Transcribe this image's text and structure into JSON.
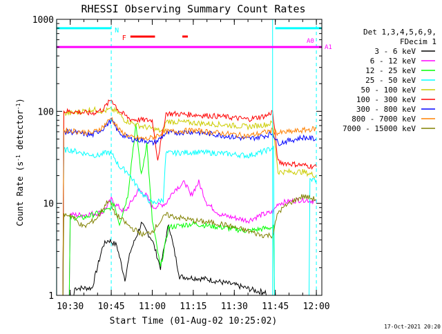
{
  "chart_data": {
    "type": "line",
    "title": "RHESSI Observing Summary Count Rates",
    "xlabel": "Start Time (01-Aug-02 10:25:02)",
    "ylabel": "Count Rate (s^-1 detector^-1)",
    "y_scale": "log",
    "ylim": [
      1,
      1000
    ],
    "xlim": [
      "10:25:02",
      "12:02:00"
    ],
    "x_ticks": [
      "10:30",
      "10:45",
      "11:00",
      "11:15",
      "11:30",
      "11:45",
      "12:00"
    ],
    "y_ticks": [
      "1",
      "10",
      "100",
      "1000"
    ],
    "legend_header": [
      "Det 1,3,4,5,6,9,",
      "FDecim 1"
    ],
    "legend_placement": "right",
    "timestamp": "17-Oct-2021 20:20",
    "annotations": {
      "night_label": "N",
      "flare_label": "F",
      "attenuator_label": "A0",
      "attenuator_label_right": "A1"
    },
    "series": [
      {
        "name": "3 - 6 keV",
        "color": "#000000",
        "points": [
          [
            "10:25",
            0
          ],
          [
            "10:38",
            1.2
          ],
          [
            "10:42",
            3.5
          ],
          [
            "10:44",
            4.0
          ],
          [
            "10:47",
            3.5
          ],
          [
            "10:50",
            1.5
          ],
          [
            "10:52",
            3.0
          ],
          [
            "10:56",
            6.0
          ],
          [
            "11:00",
            4.0
          ],
          [
            "11:03",
            2.0
          ],
          [
            "11:06",
            6.0
          ],
          [
            "11:10",
            1.6
          ],
          [
            "11:20",
            1.5
          ],
          [
            "11:30",
            1.3
          ],
          [
            "11:39",
            1.1
          ],
          [
            "11:44",
            0
          ]
        ]
      },
      {
        "name": "6 - 12 keV",
        "color": "#ff00ff",
        "points": [
          [
            "10:25",
            0
          ],
          [
            "10:35",
            7.5
          ],
          [
            "10:42",
            8.0
          ],
          [
            "10:45",
            11
          ],
          [
            "10:47",
            9.5
          ],
          [
            "10:50",
            8.0
          ],
          [
            "10:55",
            14
          ],
          [
            "10:58",
            12
          ],
          [
            "11:00",
            9
          ],
          [
            "11:05",
            10
          ],
          [
            "11:08",
            14
          ],
          [
            "11:12",
            17
          ],
          [
            "11:14",
            12
          ],
          [
            "11:17",
            17
          ],
          [
            "11:20",
            10
          ],
          [
            "11:25",
            7.5
          ],
          [
            "11:35",
            6.5
          ],
          [
            "11:40",
            7.5
          ],
          [
            "11:44",
            8.0
          ],
          [
            "11:46",
            10
          ],
          [
            "11:50",
            10.5
          ],
          [
            "11:55",
            11
          ],
          [
            "12:00",
            10.5
          ]
        ]
      },
      {
        "name": "12 - 25 keV",
        "color": "#00ff00",
        "points": [
          [
            "10:25",
            0
          ],
          [
            "10:35",
            7.0
          ],
          [
            "10:44",
            8.5
          ],
          [
            "10:46",
            10
          ],
          [
            "10:48",
            6.0
          ],
          [
            "10:51",
            12
          ],
          [
            "10:53",
            40
          ],
          [
            "10:54",
            70
          ],
          [
            "10:56",
            20
          ],
          [
            "10:58",
            45
          ],
          [
            "11:00",
            6.5
          ],
          [
            "11:03",
            2.0
          ],
          [
            "11:06",
            5.5
          ],
          [
            "11:15",
            6.0
          ],
          [
            "11:25",
            5.5
          ],
          [
            "11:35",
            5.0
          ],
          [
            "11:44",
            5.5
          ],
          [
            "11:45",
            0
          ]
        ]
      },
      {
        "name": "25 - 50 keV",
        "color": "#00ffff",
        "points": [
          [
            "10:25",
            0
          ],
          [
            "10:30",
            38
          ],
          [
            "10:35",
            35
          ],
          [
            "10:40",
            33
          ],
          [
            "10:44",
            36
          ],
          [
            "10:46",
            32
          ],
          [
            "10:48",
            25
          ],
          [
            "10:51",
            22
          ],
          [
            "10:54",
            16
          ],
          [
            "10:57",
            12
          ],
          [
            "11:00",
            10
          ],
          [
            "11:04",
            11
          ],
          [
            "11:05",
            35
          ],
          [
            "11:15",
            36
          ],
          [
            "11:25",
            35
          ],
          [
            "11:35",
            33
          ],
          [
            "11:40",
            36
          ],
          [
            "11:44",
            40
          ],
          [
            "11:45",
            0
          ],
          [
            "11:55",
            0
          ],
          [
            "12:00",
            18
          ]
        ]
      },
      {
        "name": "50 - 100 keV",
        "color": "#cccc00",
        "points": [
          [
            "10:25",
            0
          ],
          [
            "10:30",
            95
          ],
          [
            "10:38",
            105
          ],
          [
            "10:42",
            100
          ],
          [
            "10:45",
            105
          ],
          [
            "10:47",
            100
          ],
          [
            "10:50",
            80
          ],
          [
            "10:55",
            70
          ],
          [
            "11:00",
            65
          ],
          [
            "11:04",
            60
          ],
          [
            "11:05",
            78
          ],
          [
            "11:15",
            75
          ],
          [
            "11:25",
            72
          ],
          [
            "11:35",
            68
          ],
          [
            "11:42",
            72
          ],
          [
            "11:44",
            75
          ],
          [
            "11:46",
            22
          ],
          [
            "11:55",
            22
          ],
          [
            "12:00",
            20
          ]
        ]
      },
      {
        "name": "100 - 300 keV",
        "color": "#ff0000",
        "points": [
          [
            "10:25",
            0
          ],
          [
            "10:30",
            100
          ],
          [
            "10:38",
            95
          ],
          [
            "10:42",
            105
          ],
          [
            "10:45",
            135
          ],
          [
            "10:48",
            100
          ],
          [
            "10:52",
            82
          ],
          [
            "10:58",
            80
          ],
          [
            "11:00",
            80
          ],
          [
            "11:02",
            30
          ],
          [
            "11:05",
            95
          ],
          [
            "11:15",
            92
          ],
          [
            "11:25",
            88
          ],
          [
            "11:35",
            82
          ],
          [
            "11:42",
            90
          ],
          [
            "11:44",
            100
          ],
          [
            "11:46",
            28
          ],
          [
            "11:55",
            26
          ],
          [
            "12:00",
            25
          ]
        ]
      },
      {
        "name": "300 - 800 keV",
        "color": "#0000ff",
        "points": [
          [
            "10:25",
            0
          ],
          [
            "10:30",
            60
          ],
          [
            "10:38",
            55
          ],
          [
            "10:42",
            65
          ],
          [
            "10:45",
            80
          ],
          [
            "10:48",
            58
          ],
          [
            "10:52",
            50
          ],
          [
            "10:58",
            48
          ],
          [
            "11:00",
            45
          ],
          [
            "11:02",
            48
          ],
          [
            "11:05",
            58
          ],
          [
            "11:15",
            60
          ],
          [
            "11:25",
            55
          ],
          [
            "11:35",
            50
          ],
          [
            "11:42",
            55
          ],
          [
            "11:44",
            58
          ],
          [
            "11:46",
            45
          ],
          [
            "11:55",
            52
          ],
          [
            "12:00",
            50
          ]
        ]
      },
      {
        "name": "800 - 7000 keV",
        "color": "#ff8000",
        "points": [
          [
            "10:25",
            0
          ],
          [
            "10:30",
            62
          ],
          [
            "10:38",
            58
          ],
          [
            "10:42",
            68
          ],
          [
            "10:45",
            85
          ],
          [
            "10:48",
            62
          ],
          [
            "10:52",
            52
          ],
          [
            "10:58",
            50
          ],
          [
            "11:00",
            52
          ],
          [
            "11:02",
            55
          ],
          [
            "11:05",
            60
          ],
          [
            "11:15",
            62
          ],
          [
            "11:25",
            58
          ],
          [
            "11:35",
            54
          ],
          [
            "11:42",
            60
          ],
          [
            "11:44",
            62
          ],
          [
            "11:46",
            58
          ],
          [
            "11:55",
            62
          ],
          [
            "12:00",
            65
          ]
        ]
      },
      {
        "name": "7000 - 15000 keV",
        "color": "#808000",
        "points": [
          [
            "10:25",
            0
          ],
          [
            "10:30",
            7.5
          ],
          [
            "10:35",
            5.5
          ],
          [
            "10:40",
            7.0
          ],
          [
            "10:44",
            11
          ],
          [
            "10:46",
            8.0
          ],
          [
            "10:48",
            7.0
          ],
          [
            "10:52",
            5.5
          ],
          [
            "10:57",
            4.5
          ],
          [
            "11:00",
            5.0
          ],
          [
            "11:05",
            7.5
          ],
          [
            "11:15",
            6.5
          ],
          [
            "11:25",
            6.0
          ],
          [
            "11:35",
            5.0
          ],
          [
            "11:40",
            4.5
          ],
          [
            "11:44",
            4.5
          ],
          [
            "11:46",
            8.0
          ],
          [
            "11:50",
            10
          ],
          [
            "11:55",
            12
          ],
          [
            "12:00",
            11
          ]
        ]
      }
    ],
    "overlays": {
      "night_bars": [
        [
          "10:25",
          "10:45"
        ],
        [
          "11:45",
          "12:02"
        ]
      ],
      "flare_bars": [
        [
          "10:52",
          "11:01"
        ],
        [
          "11:11",
          "11:13"
        ]
      ],
      "attenuator_level": 500,
      "night_level": 800,
      "flare_level": 650,
      "dashed_vlines": [
        "10:45",
        "12:00"
      ],
      "solid_vlines": [
        "10:25",
        "11:44"
      ]
    }
  }
}
